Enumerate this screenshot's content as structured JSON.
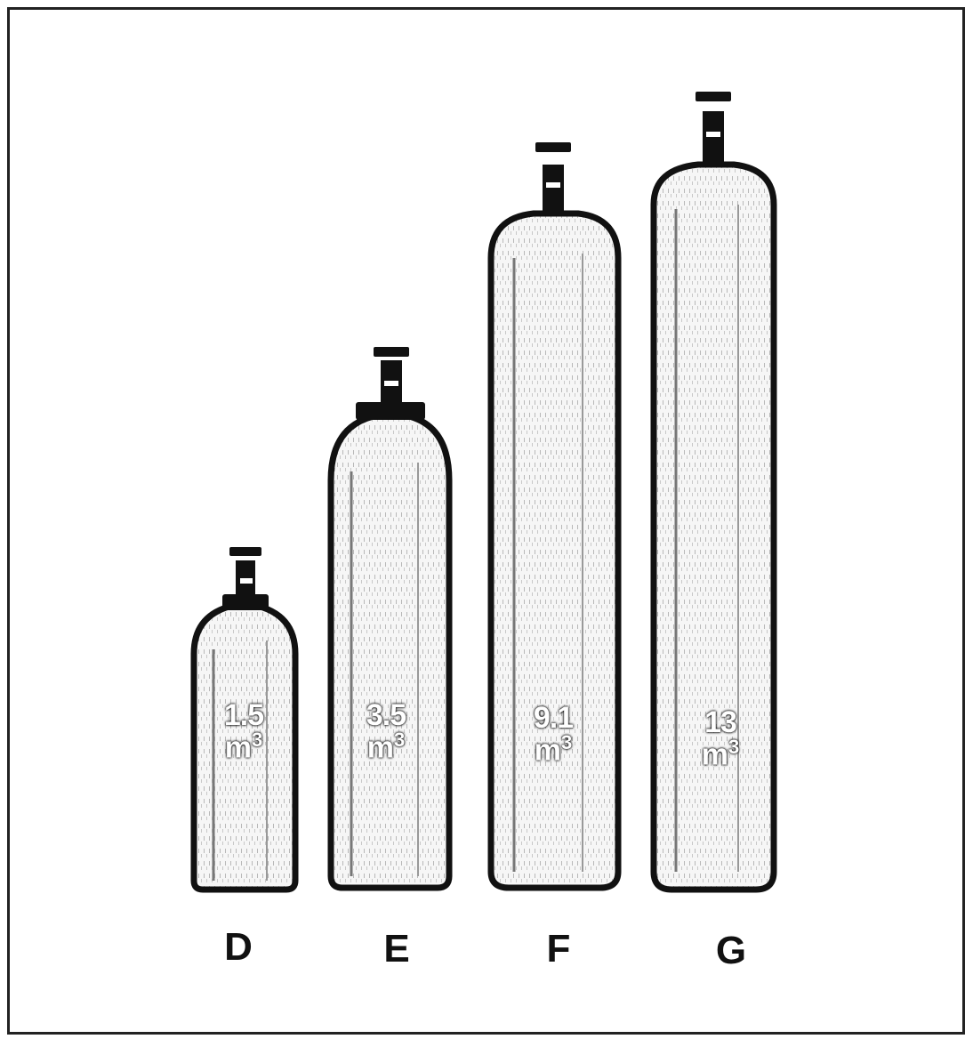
{
  "cylinders": [
    {
      "id": "D",
      "label": "D",
      "volume": "1.5",
      "unit_base": "m",
      "unit_exp": "3"
    },
    {
      "id": "E",
      "label": "E",
      "volume": "3.5",
      "unit_base": "m",
      "unit_exp": "3"
    },
    {
      "id": "F",
      "label": "F",
      "volume": "9.1",
      "unit_base": "m",
      "unit_exp": "3"
    },
    {
      "id": "G",
      "label": "G",
      "volume": "13",
      "unit_base": "m",
      "unit_exp": "3"
    }
  ],
  "colors": {
    "outline": "#111111",
    "body": "#f4f4f4",
    "label_bg": "#111111"
  }
}
